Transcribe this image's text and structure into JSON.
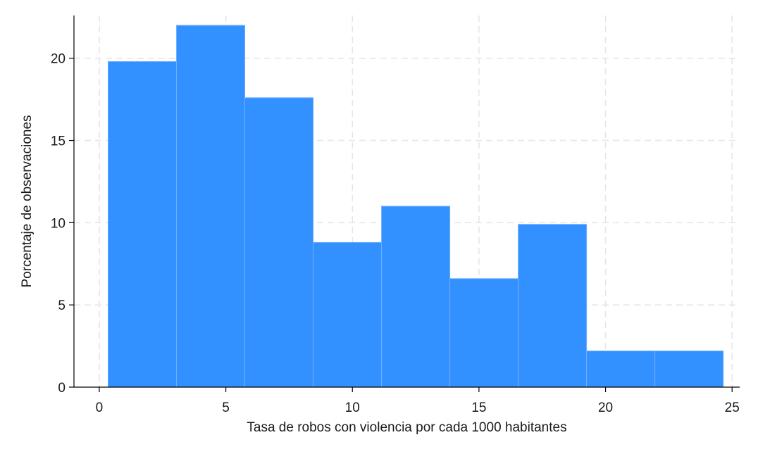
{
  "chart_data": {
    "type": "bar",
    "title": "",
    "xlabel": "Tasa de robos con violencia por cada 1000 habitantes",
    "ylabel": "Porcentaje de observaciones",
    "xlim": [
      -1,
      25.3
    ],
    "ylim": [
      0,
      22.6
    ],
    "xticks": [
      0,
      5,
      10,
      15,
      20,
      25
    ],
    "xtick_labels": [
      "0",
      "5",
      "10",
      "15",
      "20",
      "25"
    ],
    "yticks": [
      0,
      5,
      10,
      15,
      20
    ],
    "ytick_labels": [
      "0",
      "5",
      "10",
      "15",
      "20"
    ],
    "grid": true,
    "bar_color": "#3390ff",
    "bins": [
      {
        "from": 0.35,
        "to": 3.05,
        "value": 19.8
      },
      {
        "from": 3.05,
        "to": 5.75,
        "value": 22.0
      },
      {
        "from": 5.75,
        "to": 8.45,
        "value": 17.6
      },
      {
        "from": 8.45,
        "to": 11.15,
        "value": 8.8
      },
      {
        "from": 11.15,
        "to": 13.85,
        "value": 11.0
      },
      {
        "from": 13.85,
        "to": 16.55,
        "value": 6.6
      },
      {
        "from": 16.55,
        "to": 19.25,
        "value": 9.9
      },
      {
        "from": 19.25,
        "to": 21.95,
        "value": 2.2
      },
      {
        "from": 21.95,
        "to": 24.65,
        "value": 2.2
      }
    ]
  }
}
